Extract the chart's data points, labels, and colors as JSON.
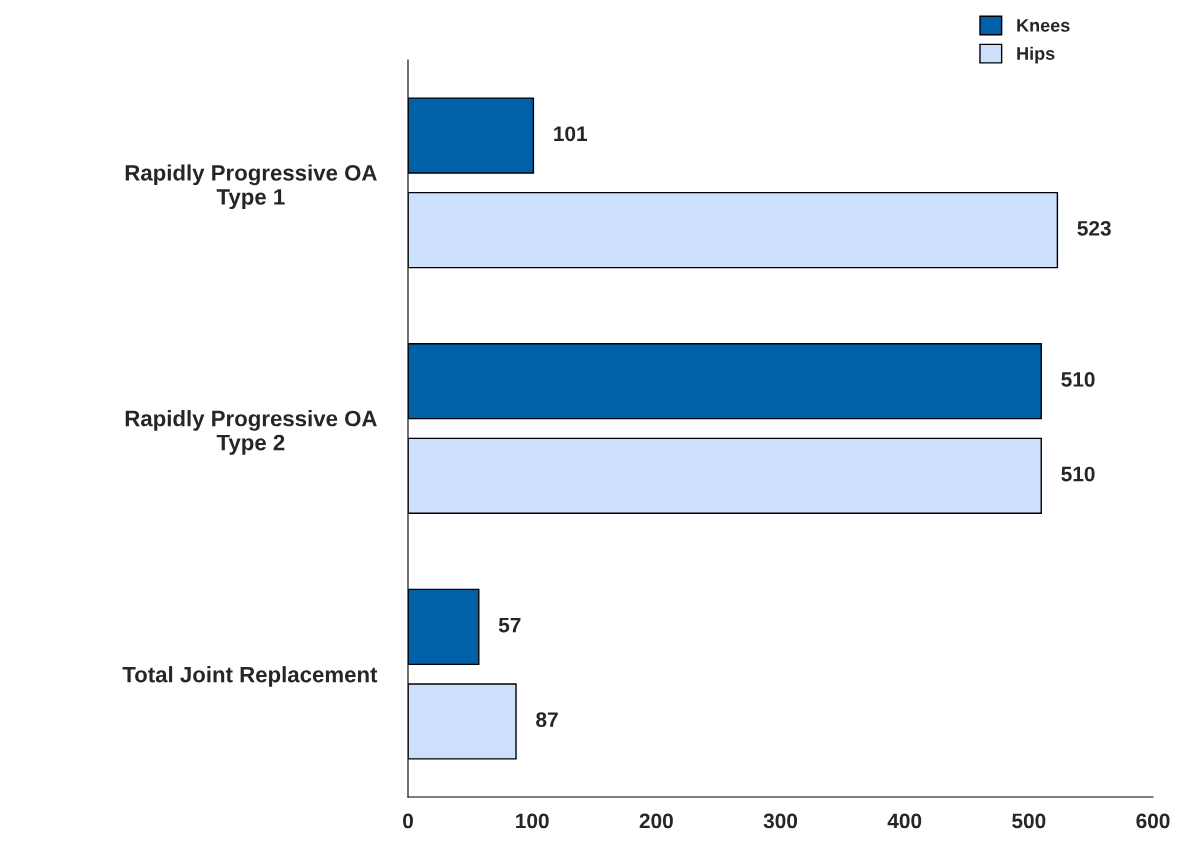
{
  "chart_data": {
    "type": "bar",
    "orientation": "horizontal",
    "categories": [
      "Rapidly Progressive OA\nType 1",
      "Rapidly Progressive OA\nType 2",
      "Total Joint Replacement"
    ],
    "series": [
      {
        "name": "Knees",
        "color": "#0060a8",
        "values": [
          101,
          510,
          57
        ]
      },
      {
        "name": "Hips",
        "color": "#cce0fc",
        "values": [
          523,
          510,
          87
        ]
      }
    ],
    "xlim": [
      0,
      600
    ],
    "xticks": [
      0,
      100,
      200,
      300,
      400,
      500,
      600
    ],
    "data_labels": true,
    "grid": false,
    "legend": "top right"
  }
}
